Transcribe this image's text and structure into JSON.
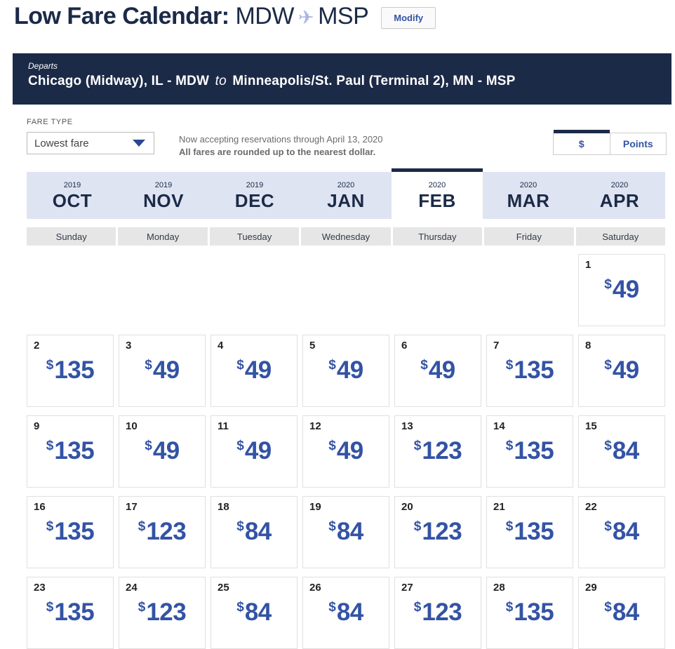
{
  "colors": {
    "navy": "#1b2a47",
    "blue": "#3353a4",
    "lavender": "#dfe4f2",
    "graybg": "#e6e6e6",
    "plane": "#aab4de"
  },
  "header": {
    "title": "Low Fare Calendar:",
    "origin": "MDW",
    "destination": "MSP",
    "plane_icon": "✈",
    "modify_label": "Modify"
  },
  "route_banner": {
    "departs_label": "Departs",
    "origin_full": "Chicago (Midway), IL - MDW",
    "to_label": "to",
    "destination_full": "Minneapolis/St. Paul (Terminal 2), MN - MSP"
  },
  "fare_controls": {
    "fare_type_label": "FARE TYPE",
    "fare_type_value": "Lowest fare",
    "notice_line1": "Now accepting reservations through April 13, 2020",
    "notice_line2": "All fares are rounded up to the nearest dollar.",
    "currency_toggle": {
      "options": [
        "$",
        "Points"
      ],
      "selected": "$"
    }
  },
  "month_tabs": [
    {
      "year": "2019",
      "month": "OCT",
      "selected": false
    },
    {
      "year": "2019",
      "month": "NOV",
      "selected": false
    },
    {
      "year": "2019",
      "month": "DEC",
      "selected": false
    },
    {
      "year": "2020",
      "month": "JAN",
      "selected": false
    },
    {
      "year": "2020",
      "month": "FEB",
      "selected": true
    },
    {
      "year": "2020",
      "month": "MAR",
      "selected": false
    },
    {
      "year": "2020",
      "month": "APR",
      "selected": false
    }
  ],
  "day_headers": [
    "Sunday",
    "Monday",
    "Tuesday",
    "Wednesday",
    "Thursday",
    "Friday",
    "Saturday"
  ],
  "calendar": {
    "currency_symbol": "$",
    "weeks": [
      [
        null,
        null,
        null,
        null,
        null,
        null,
        {
          "day": 1,
          "fare": 49
        }
      ],
      [
        {
          "day": 2,
          "fare": 135
        },
        {
          "day": 3,
          "fare": 49
        },
        {
          "day": 4,
          "fare": 49
        },
        {
          "day": 5,
          "fare": 49
        },
        {
          "day": 6,
          "fare": 49
        },
        {
          "day": 7,
          "fare": 135
        },
        {
          "day": 8,
          "fare": 49
        }
      ],
      [
        {
          "day": 9,
          "fare": 135
        },
        {
          "day": 10,
          "fare": 49
        },
        {
          "day": 11,
          "fare": 49
        },
        {
          "day": 12,
          "fare": 49
        },
        {
          "day": 13,
          "fare": 123
        },
        {
          "day": 14,
          "fare": 135
        },
        {
          "day": 15,
          "fare": 84
        }
      ],
      [
        {
          "day": 16,
          "fare": 135
        },
        {
          "day": 17,
          "fare": 123
        },
        {
          "day": 18,
          "fare": 84
        },
        {
          "day": 19,
          "fare": 84
        },
        {
          "day": 20,
          "fare": 123
        },
        {
          "day": 21,
          "fare": 135
        },
        {
          "day": 22,
          "fare": 84
        }
      ],
      [
        {
          "day": 23,
          "fare": 135
        },
        {
          "day": 24,
          "fare": 123
        },
        {
          "day": 25,
          "fare": 84
        },
        {
          "day": 26,
          "fare": 84
        },
        {
          "day": 27,
          "fare": 123
        },
        {
          "day": 28,
          "fare": 135
        },
        {
          "day": 29,
          "fare": 84
        }
      ]
    ]
  }
}
